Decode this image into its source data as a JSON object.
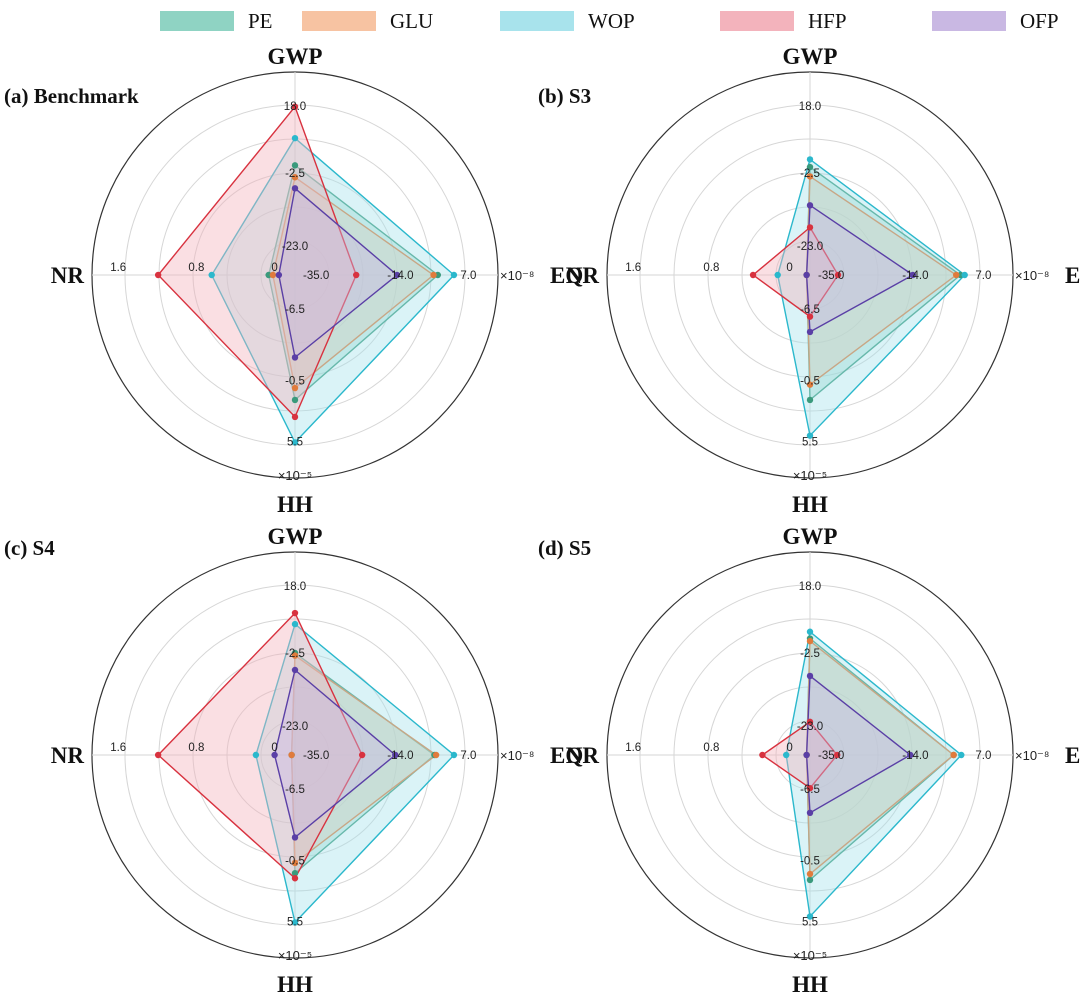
{
  "legend": [
    {
      "name": "PE",
      "fill": "#8fd3c3",
      "line": "#3a9a7c"
    },
    {
      "name": "GLU",
      "fill": "#f7c3a2",
      "line": "#e07b3c"
    },
    {
      "name": "WOP",
      "fill": "#a8e3ec",
      "line": "#2bb8cc"
    },
    {
      "name": "HFP",
      "fill": "#f3b3bc",
      "line": "#d8323f"
    },
    {
      "name": "OFP",
      "fill": "#c9b8e3",
      "line": "#5a3fa6"
    }
  ],
  "chart_data": [
    {
      "type": "radar",
      "title": "(a) Benchmark",
      "axes": [
        "GWP",
        "EQ",
        "HH",
        "NR"
      ],
      "axis_ticks": {
        "GWP": [
          "-2.5",
          "18.0"
        ],
        "EQ": [
          "-35.0",
          "-14.0",
          "7.0"
        ],
        "HH": [
          "-6.5",
          "-0.5",
          "5.5"
        ],
        "NR": [
          "0",
          "0.8",
          "1.6"
        ]
      },
      "center_ticks": [
        "-23.0"
      ],
      "eq_unit": "×10⁻⁸",
      "hh_unit": "×10⁻⁵",
      "series": [
        {
          "name": "PE",
          "values": {
            "GWP": 0.645,
            "EQ": 0.84,
            "HH": 0.735,
            "NR": 0.155
          }
        },
        {
          "name": "GLU",
          "values": {
            "GWP": 0.575,
            "EQ": 0.815,
            "HH": 0.665,
            "NR": 0.13
          }
        },
        {
          "name": "WOP",
          "values": {
            "GWP": 0.805,
            "EQ": 0.935,
            "HH": 0.985,
            "NR": 0.49
          }
        },
        {
          "name": "HFP",
          "values": {
            "GWP": 0.99,
            "EQ": 0.36,
            "HH": 0.835,
            "NR": 0.805
          }
        },
        {
          "name": "OFP",
          "values": {
            "GWP": 0.51,
            "EQ": 0.6,
            "HH": 0.485,
            "NR": 0.095
          }
        }
      ]
    },
    {
      "type": "radar",
      "title": "(b) S3",
      "axes": [
        "GWP",
        "EQ",
        "HH",
        "NR"
      ],
      "axis_ticks": {
        "GWP": [
          "-2.5",
          "18.0"
        ],
        "EQ": [
          "-35.0",
          "-14.0",
          "7.0"
        ],
        "HH": [
          "-6.5",
          "-0.5",
          "5.5"
        ],
        "NR": [
          "0",
          "0.8",
          "1.6"
        ]
      },
      "center_ticks": [
        "-23.0"
      ],
      "eq_unit": "×10⁻⁸",
      "hh_unit": "×10⁻⁵",
      "series": [
        {
          "name": "PE",
          "values": {
            "GWP": 0.635,
            "EQ": 0.885,
            "HH": 0.735,
            "NR": 0.02
          }
        },
        {
          "name": "GLU",
          "values": {
            "GWP": 0.58,
            "EQ": 0.86,
            "HH": 0.645,
            "NR": 0.02
          }
        },
        {
          "name": "WOP",
          "values": {
            "GWP": 0.68,
            "EQ": 0.91,
            "HH": 0.945,
            "NR": 0.19
          }
        },
        {
          "name": "HFP",
          "values": {
            "GWP": 0.28,
            "EQ": 0.165,
            "HH": 0.245,
            "NR": 0.335
          }
        },
        {
          "name": "OFP",
          "values": {
            "GWP": 0.41,
            "EQ": 0.605,
            "HH": 0.335,
            "NR": 0.02
          }
        }
      ]
    },
    {
      "type": "radar",
      "title": "(c) S4",
      "axes": [
        "GWP",
        "EQ",
        "HH",
        "NR"
      ],
      "axis_ticks": {
        "GWP": [
          "-2.5",
          "18.0"
        ],
        "EQ": [
          "-35.0",
          "-14.0",
          "7.0"
        ],
        "HH": [
          "-6.5",
          "-0.5",
          "5.5"
        ],
        "NR": [
          "0",
          "0.8",
          "1.6"
        ]
      },
      "center_ticks": [
        "-23.0"
      ],
      "eq_unit": "×10⁻⁸",
      "hh_unit": "×10⁻⁵",
      "series": [
        {
          "name": "PE",
          "values": {
            "GWP": 0.6,
            "EQ": 0.82,
            "HH": 0.695,
            "NR": 0.02
          }
        },
        {
          "name": "GLU",
          "values": {
            "GWP": 0.585,
            "EQ": 0.83,
            "HH": 0.635,
            "NR": 0.02
          }
        },
        {
          "name": "WOP",
          "values": {
            "GWP": 0.77,
            "EQ": 0.935,
            "HH": 0.985,
            "NR": 0.23
          }
        },
        {
          "name": "HFP",
          "values": {
            "GWP": 0.835,
            "EQ": 0.395,
            "HH": 0.725,
            "NR": 0.805
          }
        },
        {
          "name": "OFP",
          "values": {
            "GWP": 0.5,
            "EQ": 0.59,
            "HH": 0.485,
            "NR": 0.12
          }
        }
      ]
    },
    {
      "type": "radar",
      "title": "(d) S5",
      "axes": [
        "GWP",
        "EQ",
        "HH",
        "NR"
      ],
      "axis_ticks": {
        "GWP": [
          "-2.5",
          "18.0"
        ],
        "EQ": [
          "-35.0",
          "-14.0",
          "7.0"
        ],
        "HH": [
          "-6.5",
          "-0.5",
          "5.5"
        ],
        "NR": [
          "0",
          "0.8",
          "1.6"
        ]
      },
      "center_ticks": [
        "-23.0"
      ],
      "eq_unit": "×10⁻⁸",
      "hh_unit": "×10⁻⁵",
      "series": [
        {
          "name": "PE",
          "values": {
            "GWP": 0.685,
            "EQ": 0.845,
            "HH": 0.735,
            "NR": 0.02
          }
        },
        {
          "name": "GLU",
          "values": {
            "GWP": 0.67,
            "EQ": 0.845,
            "HH": 0.7,
            "NR": 0.02
          }
        },
        {
          "name": "WOP",
          "values": {
            "GWP": 0.725,
            "EQ": 0.89,
            "HH": 0.95,
            "NR": 0.14
          }
        },
        {
          "name": "HFP",
          "values": {
            "GWP": 0.195,
            "EQ": 0.16,
            "HH": 0.195,
            "NR": 0.28
          }
        },
        {
          "name": "OFP",
          "values": {
            "GWP": 0.465,
            "EQ": 0.59,
            "HH": 0.34,
            "NR": 0.02
          }
        }
      ]
    }
  ]
}
